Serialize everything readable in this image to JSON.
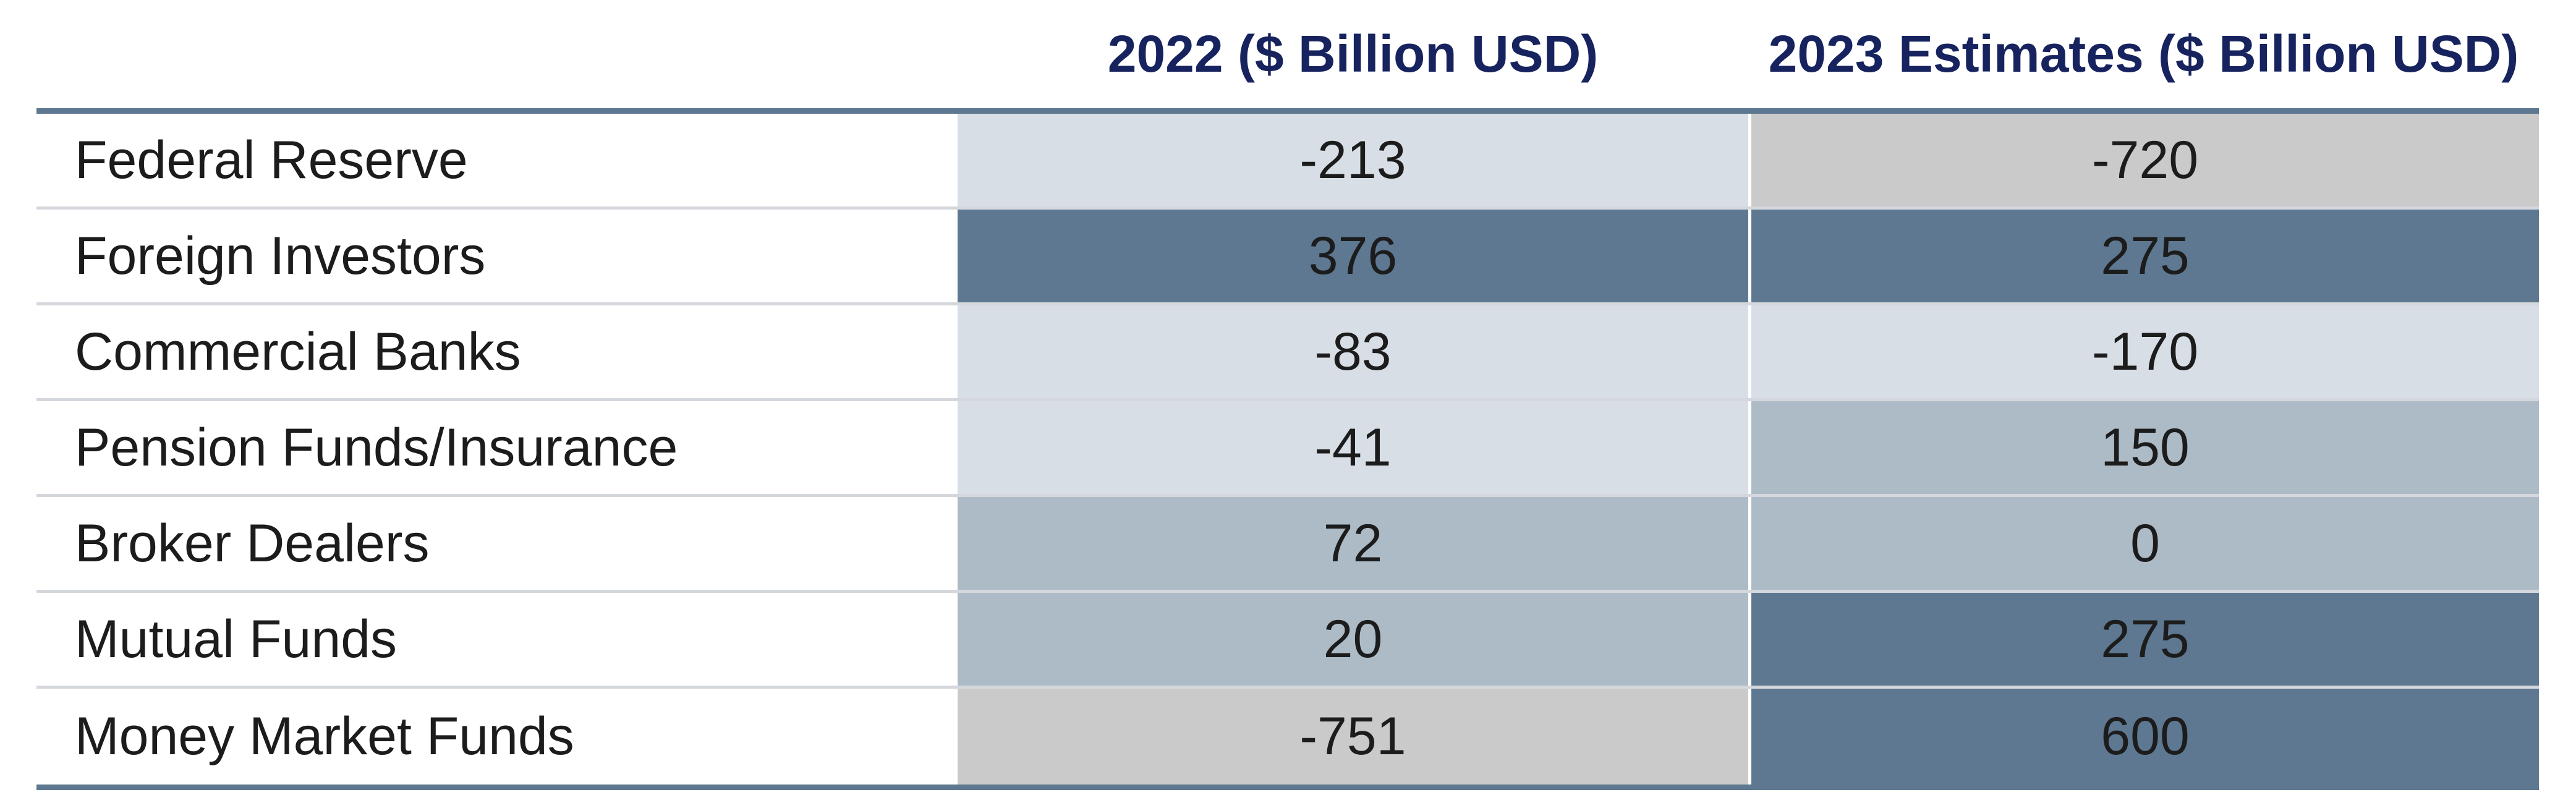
{
  "chart_data": {
    "type": "table",
    "columns": [
      "2022 ($ Billion USD)",
      "2023 Estimates ($ Billion USD)"
    ],
    "rows": [
      {
        "label": "Federal Reserve",
        "values": [
          "-213",
          "-720"
        ]
      },
      {
        "label": "Foreign Investors",
        "values": [
          "376",
          "275"
        ]
      },
      {
        "label": "Commercial Banks",
        "values": [
          "-83",
          "-170"
        ]
      },
      {
        "label": "Pension Funds/Insurance",
        "values": [
          "-41",
          "150"
        ]
      },
      {
        "label": "Broker Dealers",
        "values": [
          "72",
          "0"
        ]
      },
      {
        "label": "Mutual Funds",
        "values": [
          "20",
          "275"
        ]
      },
      {
        "label": "Money Market Funds",
        "values": [
          "-751",
          "600"
        ]
      }
    ],
    "cell_colors": [
      [
        "#d7dee6",
        "#cacaca"
      ],
      [
        "#5d7890",
        "#5d7890"
      ],
      [
        "#d7dee6",
        "#d7dee6"
      ],
      [
        "#d7dee6",
        "#adbbc7"
      ],
      [
        "#adbbc7",
        "#adbbc7"
      ],
      [
        "#adbbc7",
        "#5d7890"
      ],
      [
        "#cacaca",
        "#5d7890"
      ]
    ]
  }
}
